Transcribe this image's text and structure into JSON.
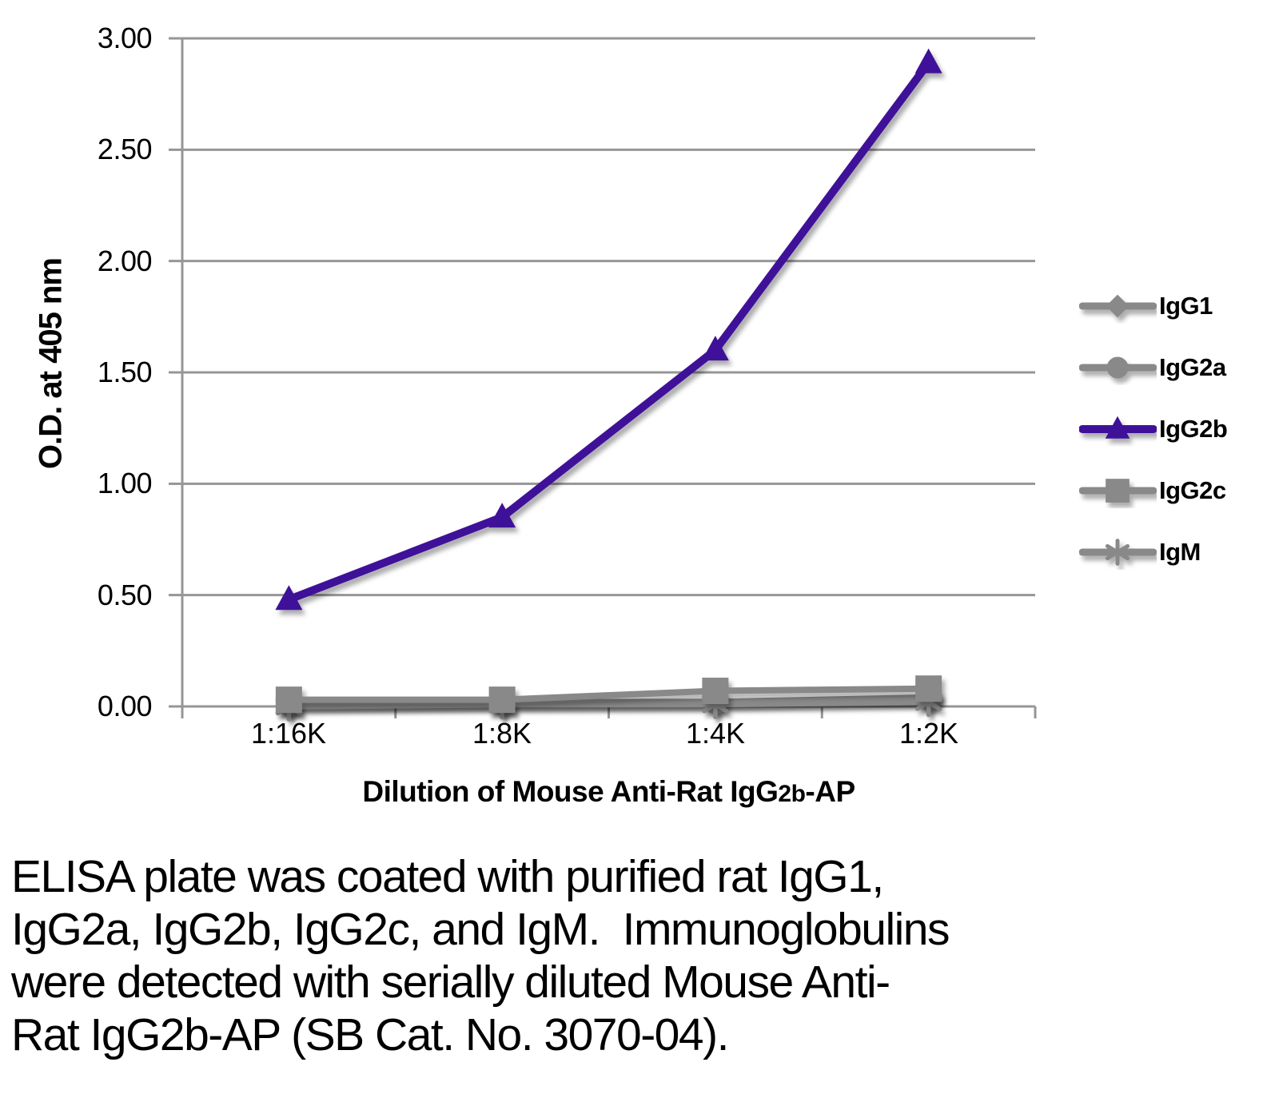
{
  "chart_data": {
    "type": "line",
    "title": "",
    "xlabel": "Dilution of Mouse Anti-Rat IgG2b-AP",
    "xlabel_parts": [
      {
        "text": "Dilution of Mouse Anti-Rat IgG",
        "small": false
      },
      {
        "text": "2b",
        "small": true
      },
      {
        "text": "-AP",
        "small": false
      }
    ],
    "ylabel": "O.D. at 405 nm",
    "categories": [
      "1:16K",
      "1:8K",
      "1:4K",
      "1:2K"
    ],
    "y_ticks": [
      "3.00",
      "2.50",
      "2.00",
      "1.50",
      "1.00",
      "0.50",
      "0.00"
    ],
    "ylim": [
      0,
      3.0
    ],
    "grid": true,
    "legend_position": "right",
    "series": [
      {
        "name": "IgG1",
        "marker": "diamond",
        "color": "#898989",
        "values": [
          0.01,
          0.01,
          0.02,
          0.03
        ]
      },
      {
        "name": "IgG2a",
        "marker": "circle",
        "color": "#898989",
        "values": [
          0.01,
          0.02,
          0.02,
          0.04
        ]
      },
      {
        "name": "IgG2b",
        "marker": "triangle",
        "color": "#3F1199",
        "values": [
          0.48,
          0.85,
          1.6,
          2.89
        ]
      },
      {
        "name": "IgG2c",
        "marker": "square",
        "color": "#898989",
        "values": [
          0.03,
          0.03,
          0.07,
          0.08
        ]
      },
      {
        "name": "IgM",
        "marker": "asterisk",
        "color": "#898989",
        "values": [
          0.0,
          0.01,
          0.01,
          0.02
        ]
      }
    ]
  },
  "caption": {
    "lines": [
      "ELISA plate was coated with purified rat IgG1,",
      "IgG2a, IgG2b, IgG2c, and IgM.  Immunoglobulins",
      "were detected with serially diluted Mouse Anti-",
      "Rat IgG2b-AP (SB Cat. No. 3070-04)."
    ]
  },
  "colors": {
    "accent_purple": "#3F1199",
    "series_gray": "#898989",
    "gridline_gray": "#969696",
    "text_black": "#000000",
    "background": "#FFFFFF"
  }
}
